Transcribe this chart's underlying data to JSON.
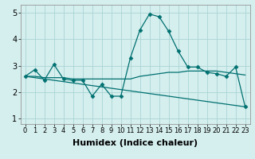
{
  "xlabel": "Humidex (Indice chaleur)",
  "ylabel": "",
  "xlim": [
    -0.5,
    23.5
  ],
  "ylim": [
    0.8,
    5.3
  ],
  "yticks": [
    1,
    2,
    3,
    4,
    5
  ],
  "xticks": [
    0,
    1,
    2,
    3,
    4,
    5,
    6,
    7,
    8,
    9,
    10,
    11,
    12,
    13,
    14,
    15,
    16,
    17,
    18,
    19,
    20,
    21,
    22,
    23
  ],
  "xtick_labels": [
    "0",
    "1",
    "2",
    "3",
    "4",
    "5",
    "6",
    "7",
    "8",
    "9",
    "10",
    "11",
    "12",
    "13",
    "14",
    "15",
    "16",
    "17",
    "18",
    "19",
    "20",
    "21",
    "22",
    "23"
  ],
  "bg_color": "#d5eeee",
  "grid_color": "#aad4d4",
  "line_color": "#007070",
  "series": [
    [
      2.6,
      2.85,
      2.45,
      3.05,
      2.5,
      2.45,
      2.45,
      1.85,
      2.3,
      1.85,
      1.85,
      3.3,
      4.35,
      4.95,
      4.85,
      4.3,
      3.55,
      2.95,
      2.95,
      2.75,
      2.7,
      2.6,
      2.95,
      1.45
    ],
    [
      2.6,
      2.6,
      2.55,
      2.55,
      2.55,
      2.5,
      2.5,
      2.5,
      2.5,
      2.5,
      2.5,
      2.5,
      2.6,
      2.65,
      2.7,
      2.75,
      2.75,
      2.8,
      2.8,
      2.8,
      2.8,
      2.75,
      2.7,
      2.65
    ],
    [
      2.6,
      2.55,
      2.5,
      2.45,
      2.4,
      2.35,
      2.3,
      2.25,
      2.2,
      2.15,
      2.1,
      2.05,
      2.0,
      1.95,
      1.9,
      1.85,
      1.8,
      1.75,
      1.7,
      1.65,
      1.6,
      1.55,
      1.5,
      1.45
    ]
  ],
  "font_size": 7,
  "marker": "D",
  "marker_size": 2.5,
  "line_width": 0.9
}
